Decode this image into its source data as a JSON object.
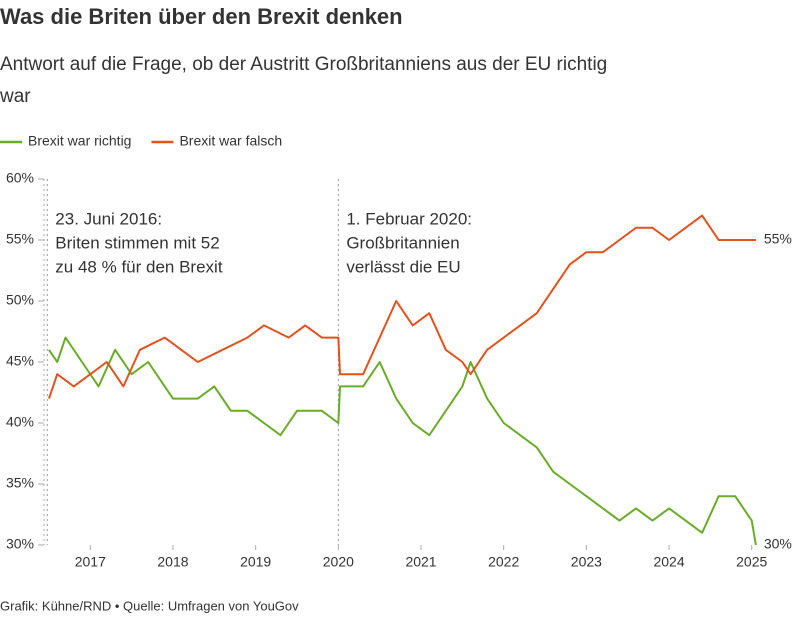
{
  "chart_data": {
    "type": "line",
    "title": "Was die Briten über den Brexit denken",
    "subtitle": [
      "Antwort auf die Frage, ob der Austritt Großbritanniens aus der EU richtig",
      "war"
    ],
    "source": "Grafik: Kühne/RND • Quelle: Umfragen von YouGov",
    "xlim": [
      2016.44,
      2025.1
    ],
    "xticks": [
      2017,
      2018,
      2019,
      2020,
      2021,
      2022,
      2023,
      2024,
      2025
    ],
    "ylim": [
      30,
      60
    ],
    "yticks": [
      {
        "value": 30,
        "label": "30%"
      },
      {
        "value": 35,
        "label": "35%"
      },
      {
        "value": 40,
        "label": "40%"
      },
      {
        "value": 45,
        "label": "45%"
      },
      {
        "value": 50,
        "label": "50%"
      },
      {
        "value": 55,
        "label": "55%"
      },
      {
        "value": 60,
        "label": "60%"
      }
    ],
    "annotations": [
      {
        "x": 2016.48,
        "text": [
          "23. Juni 2016:",
          "Briten stimmen mit 52",
          "zu 48 % für den Brexit"
        ]
      },
      {
        "x": 2020.0,
        "text": [
          "1. Februar 2020:",
          "Großbritannien",
          "verlässt die EU"
        ]
      }
    ],
    "series": [
      {
        "name": "Brexit war richtig",
        "color": "#6aab2a",
        "x": [
          2016.5,
          2016.6,
          2016.7,
          2016.9,
          2017.1,
          2017.3,
          2017.5,
          2017.7,
          2017.9,
          2018.0,
          2018.3,
          2018.5,
          2018.7,
          2018.9,
          2019.1,
          2019.3,
          2019.5,
          2019.8,
          2020.0,
          2020.02,
          2020.3,
          2020.5,
          2020.7,
          2020.9,
          2021.1,
          2021.3,
          2021.5,
          2021.6,
          2021.8,
          2022.0,
          2022.2,
          2022.4,
          2022.6,
          2022.8,
          2023.0,
          2023.2,
          2023.4,
          2023.6,
          2023.8,
          2024.0,
          2024.2,
          2024.4,
          2024.6,
          2024.8,
          2025.0,
          2025.05
        ],
        "values": [
          46,
          45,
          47,
          45,
          43,
          46,
          44,
          45,
          43,
          42,
          42,
          43,
          41,
          41,
          40,
          39,
          41,
          41,
          40,
          43,
          43,
          45,
          42,
          40,
          39,
          41,
          43,
          45,
          42,
          40,
          39,
          38,
          36,
          35,
          34,
          33,
          32,
          33,
          32,
          33,
          32,
          31,
          34,
          34,
          32,
          30
        ],
        "value_labels": [
          null,
          null,
          null,
          null,
          null,
          null,
          null,
          null,
          null,
          null,
          null,
          null,
          null,
          null,
          null,
          null,
          null,
          null,
          null,
          null,
          null,
          null,
          null,
          null,
          null,
          null,
          null,
          null,
          null,
          null,
          null,
          null,
          null,
          null,
          null,
          null,
          null,
          null,
          null,
          null,
          null,
          null,
          null,
          null,
          null,
          "30%"
        ]
      },
      {
        "name": "Brexit war falsch",
        "color": "#e0531f",
        "x": [
          2016.5,
          2016.6,
          2016.8,
          2017.0,
          2017.2,
          2017.4,
          2017.6,
          2017.9,
          2018.1,
          2018.3,
          2018.6,
          2018.9,
          2019.1,
          2019.4,
          2019.6,
          2019.8,
          2020.0,
          2020.02,
          2020.3,
          2020.5,
          2020.7,
          2020.9,
          2021.1,
          2021.3,
          2021.5,
          2021.6,
          2021.8,
          2022.0,
          2022.2,
          2022.4,
          2022.6,
          2022.8,
          2023.0,
          2023.2,
          2023.4,
          2023.6,
          2023.8,
          2024.0,
          2024.2,
          2024.4,
          2024.6,
          2024.8,
          2025.05
        ],
        "values": [
          42,
          44,
          43,
          44,
          45,
          43,
          46,
          47,
          46,
          45,
          46,
          47,
          48,
          47,
          48,
          47,
          47,
          44,
          44,
          47,
          50,
          48,
          49,
          46,
          45,
          44,
          46,
          47,
          48,
          49,
          51,
          53,
          54,
          54,
          55,
          56,
          56,
          55,
          56,
          57,
          55,
          55,
          55
        ],
        "value_labels": [
          null,
          null,
          null,
          null,
          null,
          null,
          null,
          null,
          null,
          null,
          null,
          null,
          null,
          null,
          null,
          null,
          null,
          null,
          null,
          null,
          null,
          null,
          null,
          null,
          null,
          null,
          null,
          null,
          null,
          null,
          null,
          null,
          null,
          null,
          null,
          null,
          null,
          null,
          null,
          null,
          null,
          null,
          "55%"
        ]
      }
    ]
  }
}
